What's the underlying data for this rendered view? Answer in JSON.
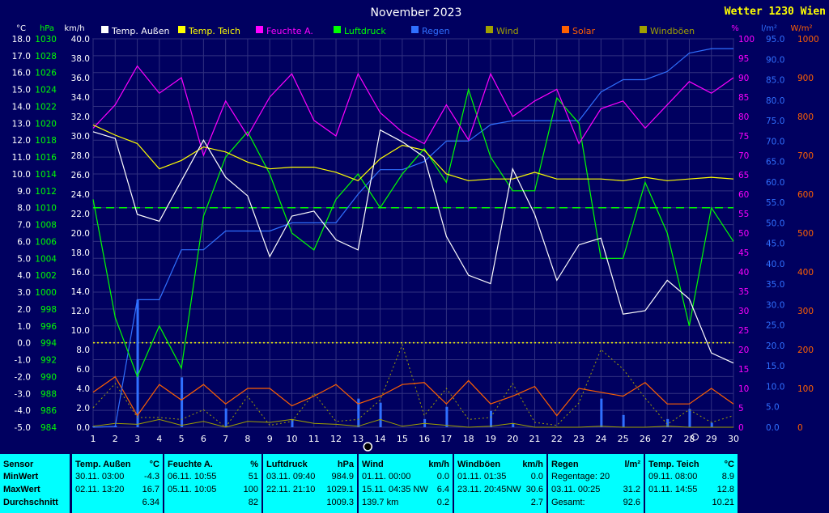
{
  "chart_data": {
    "type": "line",
    "title": "November 2023",
    "station": "Wetter 1230 Wien",
    "x": [
      1,
      2,
      3,
      4,
      5,
      6,
      7,
      8,
      9,
      10,
      11,
      12,
      13,
      14,
      15,
      16,
      17,
      18,
      19,
      20,
      21,
      22,
      23,
      24,
      25,
      26,
      27,
      28,
      29,
      30
    ],
    "x_ticks": [
      "1",
      "2",
      "3",
      "4",
      "5",
      "6",
      "7",
      "8",
      "9",
      "10",
      "11",
      "12",
      "13",
      "14",
      "15",
      "16",
      "17",
      "18",
      "19",
      "20",
      "21",
      "22",
      "23",
      "24",
      "25",
      "26",
      "27",
      "28",
      "29",
      "30"
    ],
    "axes": {
      "temp": {
        "unit": "°C",
        "ylim": [
          -5.0,
          18.0
        ],
        "ticks": [
          "18.0",
          "17.0",
          "16.0",
          "15.0",
          "14.0",
          "13.0",
          "12.0",
          "11.0",
          "10.0",
          "9.0",
          "8.0",
          "7.0",
          "6.0",
          "5.0",
          "4.0",
          "3.0",
          "2.0",
          "1.0",
          "0.0",
          "-1.0",
          "-2.0",
          "-3.0",
          "-4.0",
          "-5.0"
        ]
      },
      "pressure": {
        "unit": "hPa",
        "ylim": [
          984,
          1030
        ],
        "ticks": [
          "1030",
          "1028",
          "1026",
          "1024",
          "1022",
          "1020",
          "1018",
          "1016",
          "1014",
          "1012",
          "1010",
          "1008",
          "1006",
          "1004",
          "1002",
          "1000",
          "998",
          "996",
          "994",
          "992",
          "990",
          "988",
          "986",
          "984"
        ]
      },
      "wind": {
        "unit": "km/h",
        "ylim": [
          0.0,
          40.0
        ],
        "ticks": [
          "40.0",
          "38.0",
          "36.0",
          "34.0",
          "32.0",
          "30.0",
          "28.0",
          "26.0",
          "24.0",
          "22.0",
          "20.0",
          "18.0",
          "16.0",
          "14.0",
          "12.0",
          "10.0",
          "8.0",
          "6.0",
          "4.0",
          "2.0",
          "0.0"
        ]
      },
      "humidity": {
        "unit": "%",
        "ylim": [
          0,
          100
        ],
        "ticks": [
          "100",
          "95",
          "90",
          "85",
          "80",
          "75",
          "70",
          "65",
          "60",
          "55",
          "50",
          "45",
          "40",
          "35",
          "30",
          "25",
          "20",
          "15",
          "10",
          "5",
          "0"
        ]
      },
      "rain": {
        "unit": "l/m²",
        "ylim": [
          0.0,
          95.0
        ],
        "ticks": [
          "95.0",
          "90.0",
          "85.0",
          "80.0",
          "75.0",
          "70.0",
          "65.0",
          "60.0",
          "55.0",
          "50.0",
          "45.0",
          "40.0",
          "35.0",
          "30.0",
          "25.0",
          "20.0",
          "15.0",
          "10.0",
          "5.0",
          "0.0"
        ]
      },
      "solar": {
        "unit": "W/m²",
        "ylim": [
          0,
          1000
        ],
        "ticks": [
          "1000",
          "900",
          "800",
          "700",
          "600",
          "500",
          "400",
          "300",
          "200",
          "100",
          "0"
        ]
      }
    },
    "legend": [
      {
        "name": "Temp. Außen",
        "color": "#ffffff"
      },
      {
        "name": "Temp. Teich",
        "color": "#ffff00"
      },
      {
        "name": "Feuchte A.",
        "color": "#ff00ff"
      },
      {
        "name": "Luftdruck",
        "color": "#00ff00"
      },
      {
        "name": "Regen",
        "color": "#3070ff"
      },
      {
        "name": "Wind",
        "color": "#a0a000"
      },
      {
        "name": "Solar",
        "color": "#ff6000"
      },
      {
        "name": "Windböen",
        "color": "#a0a000"
      }
    ],
    "series": [
      {
        "name": "Temp. Außen",
        "axis": "temp",
        "color": "#ffffff",
        "values": [
          12.5,
          12.1,
          7.6,
          7.2,
          9.6,
          12.0,
          9.8,
          8.7,
          5.1,
          7.5,
          7.8,
          6.1,
          5.5,
          12.6,
          11.9,
          11.0,
          6.3,
          4.0,
          3.5,
          10.3,
          7.6,
          3.7,
          5.8,
          6.2,
          1.7,
          1.9,
          3.7,
          2.6,
          -0.6,
          -1.2
        ]
      },
      {
        "name": "Temp. Teich",
        "axis": "temp",
        "color": "#ffff00",
        "values": [
          12.9,
          12.3,
          11.8,
          10.3,
          10.8,
          11.6,
          11.3,
          10.7,
          10.3,
          10.4,
          10.4,
          10.1,
          9.6,
          10.9,
          11.7,
          11.4,
          10.0,
          9.6,
          9.7,
          9.7,
          10.1,
          9.7,
          9.7,
          9.7,
          9.6,
          9.8,
          9.6,
          9.7,
          9.8,
          9.7
        ]
      },
      {
        "name": "Feuchte A.",
        "axis": "humidity",
        "color": "#ff00ff",
        "values": [
          77,
          83,
          93,
          86,
          90,
          70,
          84,
          75,
          85,
          91,
          79,
          75,
          91,
          81,
          76,
          73,
          83,
          74,
          91,
          80,
          84,
          87,
          73,
          82,
          84,
          77,
          83,
          89,
          86,
          90
        ]
      },
      {
        "name": "Luftdruck",
        "axis": "pressure",
        "color": "#00ff00",
        "values": [
          1011,
          997,
          990,
          996,
          991,
          1009,
          1016,
          1019,
          1014,
          1007,
          1005,
          1011,
          1014,
          1010,
          1014,
          1017,
          1013,
          1024,
          1016,
          1012,
          1012,
          1023,
          1020,
          1004,
          1004,
          1013,
          1007,
          996,
          1010,
          1006
        ]
      },
      {
        "name": "Regen",
        "axis": "rain",
        "color": "#3070ff",
        "values": [
          0.0,
          0.2,
          31.2,
          31.2,
          43.4,
          43.4,
          48.0,
          48.0,
          48.0,
          50.0,
          50.0,
          50.0,
          57.0,
          63.0,
          63.0,
          65.0,
          70.0,
          70.0,
          74.0,
          75.0,
          75.0,
          75.0,
          75.0,
          82.0,
          85.0,
          85.0,
          87.0,
          91.5,
          92.6,
          92.6
        ]
      },
      {
        "name": "Solar",
        "axis": "solar",
        "color": "#ff6000",
        "values": [
          90,
          130,
          30,
          110,
          70,
          110,
          60,
          100,
          100,
          55,
          80,
          110,
          60,
          80,
          110,
          115,
          60,
          120,
          60,
          80,
          105,
          30,
          100,
          90,
          80,
          115,
          60,
          60,
          100,
          60
        ]
      },
      {
        "name": "Wind",
        "axis": "wind",
        "color": "#a0a000",
        "values": [
          0.1,
          0.4,
          0.3,
          0.8,
          0.2,
          0.6,
          0.0,
          0.6,
          0.5,
          0.8,
          0.4,
          0.3,
          0.1,
          0.8,
          0.1,
          0.4,
          0.2,
          0.0,
          0.1,
          0.4,
          0.0,
          0.0,
          0.0,
          0.1,
          0.0,
          0.0,
          0.1,
          0.0,
          0.0,
          0.0
        ]
      },
      {
        "name": "Windböen",
        "axis": "wind",
        "color": "#a0a000",
        "values": [
          2.0,
          4.5,
          1.0,
          1.0,
          0.8,
          1.8,
          0.0,
          3.2,
          0.2,
          0.6,
          3.5,
          0.6,
          0.8,
          2.8,
          8.5,
          1.2,
          4.0,
          0.8,
          1.0,
          4.5,
          0.5,
          0.2,
          2.5,
          8.0,
          6.0,
          3.0,
          0.3,
          1.8,
          0.5,
          1.2
        ]
      },
      {
        "name": "Regen (daily)",
        "axis": "rain",
        "color": "#3070ff",
        "values": [
          0.2,
          0.4,
          31.2,
          0.0,
          12.2,
          0.0,
          4.6,
          0.0,
          0.0,
          2.0,
          0.0,
          0.0,
          7.0,
          6.0,
          0.0,
          2.0,
          5.0,
          0.0,
          4.0,
          1.0,
          0.0,
          0.0,
          0.0,
          7.0,
          3.0,
          0.0,
          2.0,
          4.5,
          1.1,
          0.0
        ]
      }
    ],
    "reference_lines": [
      {
        "axis": "temp",
        "value": 0.0,
        "color": "#ffff00",
        "style": "dotted"
      },
      {
        "axis": "temp",
        "value": 8.0,
        "color": "#00ff00",
        "style": "dashed"
      }
    ],
    "markers": {
      "sun_day": "13",
      "moon_day": "28"
    }
  },
  "stats": {
    "columns": [
      {
        "head": "Sensor",
        "unit": "",
        "rows": [
          "MinWert",
          "MaxWert",
          "Durchschnitt"
        ]
      },
      {
        "head": "Temp. Außen",
        "unit": "°C",
        "rows": [
          [
            "30.11.  03:00",
            "-4.3"
          ],
          [
            "02.11.  13:20",
            "16.7"
          ],
          [
            "",
            "6.34"
          ]
        ]
      },
      {
        "head": "Feuchte A.",
        "unit": "%",
        "rows": [
          [
            "06.11.  10:55",
            "51"
          ],
          [
            "05.11.  10:05",
            "100"
          ],
          [
            "",
            "82"
          ]
        ]
      },
      {
        "head": "Luftdruck",
        "unit": "hPa",
        "rows": [
          [
            "03.11.  09:40",
            "984.9"
          ],
          [
            "22.11.  21:10",
            "1029.1"
          ],
          [
            "",
            "1009.3"
          ]
        ]
      },
      {
        "head": "Wind",
        "unit": "km/h",
        "rows": [
          [
            "01.11.  00:00",
            "0.0"
          ],
          [
            "15.11.  04:35 NW",
            "6.4"
          ],
          [
            "139.7 km",
            "0.2"
          ]
        ]
      },
      {
        "head": "Windböen",
        "unit": "km/h",
        "rows": [
          [
            "01.11.  01:35",
            "0.0"
          ],
          [
            "23.11.  20:45NW",
            "30.6"
          ],
          [
            "",
            "2.7"
          ]
        ]
      },
      {
        "head": "Regen",
        "unit": "l/m²",
        "rows": [
          [
            "Regentage: 20",
            ""
          ],
          [
            "03.11.  00:25",
            "31.2"
          ],
          [
            "Gesamt:",
            "92.6"
          ]
        ]
      },
      {
        "head": "Temp. Teich",
        "unit": "°C",
        "rows": [
          [
            "09.11.  08:00",
            "8.9"
          ],
          [
            "01.11.  14:55",
            "12.8"
          ],
          [
            "",
            "10.21"
          ]
        ]
      }
    ]
  }
}
